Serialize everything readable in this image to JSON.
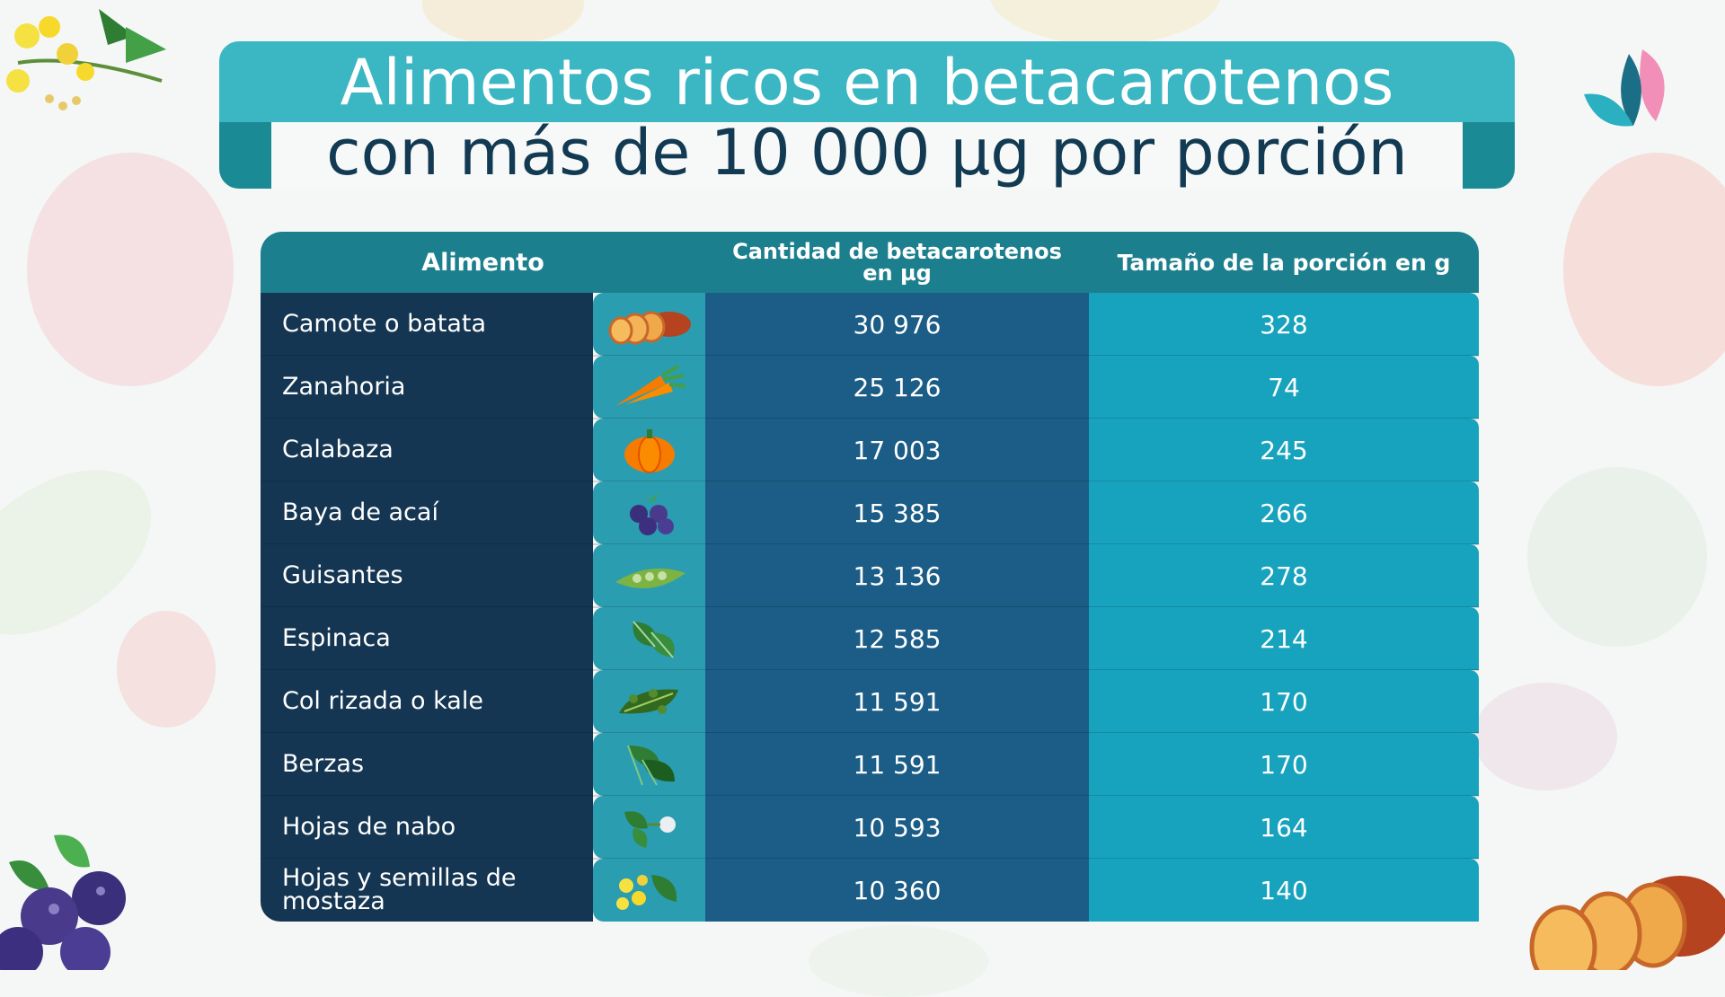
{
  "title": {
    "line1": "Alimentos ricos en betacarotenos",
    "line2": "con más de 10 000 µg por porción"
  },
  "table": {
    "headers": {
      "food": "Alimento",
      "amount_line1": "Cantidad de betacarotenos",
      "amount_line2": "en µg",
      "portion": "Tamaño de la porción en g"
    },
    "rows": [
      {
        "food": "Camote o batata",
        "amount": "30 976",
        "portion": "328",
        "icon": "sweet-potato-icon"
      },
      {
        "food": "Zanahoria",
        "amount": "25 126",
        "portion": "74",
        "icon": "carrot-icon"
      },
      {
        "food": "Calabaza",
        "amount": "17 003",
        "portion": "245",
        "icon": "pumpkin-icon"
      },
      {
        "food": "Baya de acaí",
        "amount": "15 385",
        "portion": "266",
        "icon": "acai-berry-icon"
      },
      {
        "food": "Guisantes",
        "amount": "13 136",
        "portion": "278",
        "icon": "peas-icon"
      },
      {
        "food": "Espinaca",
        "amount": "12 585",
        "portion": "214",
        "icon": "spinach-icon"
      },
      {
        "food": "Col rizada o kale",
        "amount": "11 591",
        "portion": "170",
        "icon": "kale-icon"
      },
      {
        "food": "Berzas",
        "amount": "11 591",
        "portion": "170",
        "icon": "collard-greens-icon"
      },
      {
        "food": "Hojas de nabo",
        "amount": "10 593",
        "portion": "164",
        "icon": "turnip-greens-icon"
      },
      {
        "food": "Hojas y semillas de mostaza",
        "amount": "10 360",
        "portion": "140",
        "icon": "mustard-greens-icon"
      }
    ]
  },
  "colors": {
    "title_band": "#3bb6c3",
    "title_dark_text": "#123a52",
    "header": "#1c7f8d",
    "name_column": "#153652",
    "amount_column": "#1b5d86",
    "portion_column": "#17a3bd"
  }
}
